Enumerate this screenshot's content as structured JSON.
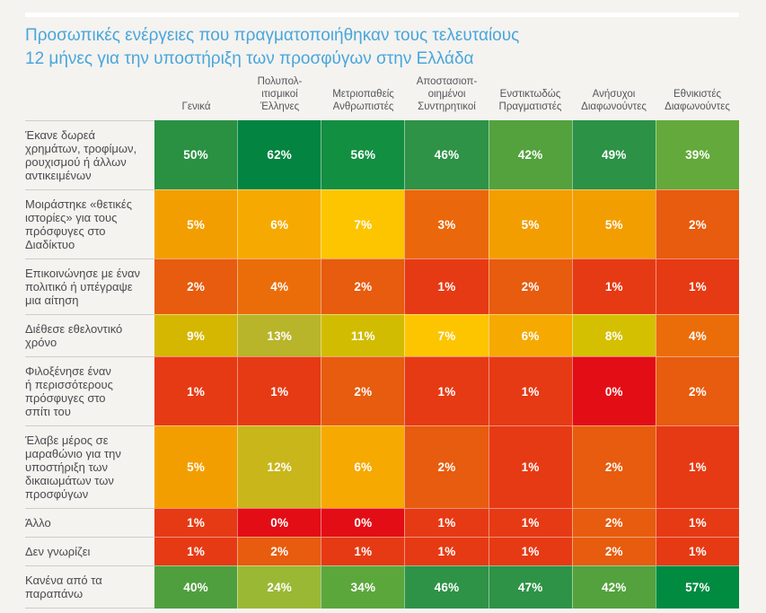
{
  "title": {
    "text": "Προσωπικές ενέργειες που πραγματοποιήθηκαν τους τελευταίους\n12 μήνες για την υποστήριξη των προσφύγων στην Ελλάδα"
  },
  "colors": {
    "title_text": "#4AA6DB",
    "header_text": "#55565A",
    "row_label_text": "#4B4B4E",
    "cell_text": "#FFFFFF",
    "background": "#F4F3F0",
    "divider": "#CFCDC8",
    "top_strip": "#FFFFFF"
  },
  "table": {
    "columns": [
      {
        "label": "Γενικά"
      },
      {
        "label": "Πολυπολ-\nιτισμικοί\nΈλληνες"
      },
      {
        "label": "Μετριοπαθείς\nΑνθρωπιστές"
      },
      {
        "label": "Αποστασιοπ-\nοιημένοι\nΣυντηρητικοί"
      },
      {
        "label": "Ενστικτωδώς\nΠραγματιστές"
      },
      {
        "label": "Ανήσυχοι\nΔιαφωνούντες"
      },
      {
        "label": "Εθνικιστές\nΔιαφωνούντες"
      }
    ],
    "rows": [
      {
        "label": "Έκανε δωρεά\nχρημάτων, τροφίμων,\nρουχισμού ή άλλων\nαντικειμένων",
        "cells": [
          {
            "value": "50%",
            "color": "#2A9142"
          },
          {
            "value": "62%",
            "color": "#038440"
          },
          {
            "value": "56%",
            "color": "#128F41"
          },
          {
            "value": "46%",
            "color": "#2E9346"
          },
          {
            "value": "42%",
            "color": "#53A23D"
          },
          {
            "value": "49%",
            "color": "#2C9245"
          },
          {
            "value": "39%",
            "color": "#63A93B"
          }
        ]
      },
      {
        "label": "Μοιράστηκε «θετικές\nιστορίες» για τους\nπρόσφυγες στο\nΔιαδίκτυο",
        "cells": [
          {
            "value": "5%",
            "color": "#F39E00"
          },
          {
            "value": "6%",
            "color": "#F6A900"
          },
          {
            "value": "7%",
            "color": "#FDC500"
          },
          {
            "value": "3%",
            "color": "#EA680B"
          },
          {
            "value": "5%",
            "color": "#F39E00"
          },
          {
            "value": "5%",
            "color": "#F39E00"
          },
          {
            "value": "2%",
            "color": "#E75C0E"
          }
        ]
      },
      {
        "label": "Επικοινώνησε με έναν\nπολιτικό ή υπέγραψε\nμια αίτηση",
        "cells": [
          {
            "value": "2%",
            "color": "#E75C0E"
          },
          {
            "value": "4%",
            "color": "#EB6D09"
          },
          {
            "value": "2%",
            "color": "#E75C0E"
          },
          {
            "value": "1%",
            "color": "#E63A14"
          },
          {
            "value": "2%",
            "color": "#E75C0E"
          },
          {
            "value": "1%",
            "color": "#E63A14"
          },
          {
            "value": "1%",
            "color": "#E63A14"
          }
        ]
      },
      {
        "label": "Διέθεσε εθελοντικό\nχρόνο",
        "cells": [
          {
            "value": "9%",
            "color": "#D5B600"
          },
          {
            "value": "13%",
            "color": "#B8B52A"
          },
          {
            "value": "11%",
            "color": "#D1BC02"
          },
          {
            "value": "7%",
            "color": "#FDC500"
          },
          {
            "value": "6%",
            "color": "#F6A900"
          },
          {
            "value": "8%",
            "color": "#D4C000"
          },
          {
            "value": "4%",
            "color": "#EB6D09"
          }
        ]
      },
      {
        "label": "Φιλοξένησε έναν\nή περισσότερους\nπρόσφυγες στο\nσπίτι του",
        "cells": [
          {
            "value": "1%",
            "color": "#E63A14"
          },
          {
            "value": "1%",
            "color": "#E63A14"
          },
          {
            "value": "2%",
            "color": "#E75C0E"
          },
          {
            "value": "1%",
            "color": "#E63A14"
          },
          {
            "value": "1%",
            "color": "#E63A14"
          },
          {
            "value": "0%",
            "color": "#E30D16"
          },
          {
            "value": "2%",
            "color": "#E75C0E"
          }
        ]
      },
      {
        "label": "Έλαβε μέρος σε\nμαραθώνιο για την\nυποστήριξη των\nδικαιωμάτων των\nπροσφύγων",
        "cells": [
          {
            "value": "5%",
            "color": "#F39E00"
          },
          {
            "value": "12%",
            "color": "#C8B61B"
          },
          {
            "value": "6%",
            "color": "#F6A900"
          },
          {
            "value": "2%",
            "color": "#E75C0E"
          },
          {
            "value": "1%",
            "color": "#E63A14"
          },
          {
            "value": "2%",
            "color": "#E75C0E"
          },
          {
            "value": "1%",
            "color": "#E63A14"
          }
        ]
      },
      {
        "label": "Άλλο",
        "cells": [
          {
            "value": "1%",
            "color": "#E63A14"
          },
          {
            "value": "0%",
            "color": "#E30D16"
          },
          {
            "value": "0%",
            "color": "#E30D16"
          },
          {
            "value": "1%",
            "color": "#E63A14"
          },
          {
            "value": "1%",
            "color": "#E63A14"
          },
          {
            "value": "2%",
            "color": "#E75C0E"
          },
          {
            "value": "1%",
            "color": "#E63A14"
          }
        ]
      },
      {
        "label": "Δεν γνωρίζει",
        "cells": [
          {
            "value": "1%",
            "color": "#E63A14"
          },
          {
            "value": "2%",
            "color": "#E75C0E"
          },
          {
            "value": "1%",
            "color": "#E63A14"
          },
          {
            "value": "1%",
            "color": "#E63A14"
          },
          {
            "value": "1%",
            "color": "#E63A14"
          },
          {
            "value": "2%",
            "color": "#E75C0E"
          },
          {
            "value": "1%",
            "color": "#E63A14"
          }
        ]
      },
      {
        "label": "Κανένα από τα\nπαραπάνω",
        "cells": [
          {
            "value": "40%",
            "color": "#4F9F3E"
          },
          {
            "value": "24%",
            "color": "#9BB834"
          },
          {
            "value": "34%",
            "color": "#5CA73C"
          },
          {
            "value": "46%",
            "color": "#2E9346"
          },
          {
            "value": "47%",
            "color": "#2E9346"
          },
          {
            "value": "42%",
            "color": "#53A23D"
          },
          {
            "value": "57%",
            "color": "#008B41"
          }
        ]
      }
    ]
  },
  "chart_data": {
    "type": "heatmap",
    "title": "Προσωπικές ενέργειες που πραγματοποιήθηκαν τους τελευταίους 12 μήνες για την υποστήριξη των προσφύγων στην Ελλάδα",
    "unit": "percent",
    "columns": [
      "Γενικά",
      "Πολυπολιτισμικοί Έλληνες",
      "Μετριοπαθείς Ανθρωπιστές",
      "Αποστασιοποιημένοι Συντηρητικοί",
      "Ενστικτωδώς Πραγματιστές",
      "Ανήσυχοι Διαφωνούντες",
      "Εθνικιστές Διαφωνούντες"
    ],
    "rows": [
      "Έκανε δωρεά χρημάτων, τροφίμων, ρουχισμού ή άλλων αντικειμένων",
      "Μοιράστηκε «θετικές ιστορίες» για τους πρόσφυγες στο Διαδίκτυο",
      "Επικοινώνησε με έναν πολιτικό ή υπέγραψε μια αίτηση",
      "Διέθεσε εθελοντικό χρόνο",
      "Φιλοξένησε έναν ή περισσότερους πρόσφυγες στο σπίτι του",
      "Έλαβε μέρος σε μαραθώνιο για την υποστήριξη των δικαιωμάτων των προσφύγων",
      "Άλλο",
      "Δεν γνωρίζει",
      "Κανένα από τα παραπάνω"
    ],
    "values": [
      [
        50,
        62,
        56,
        46,
        42,
        49,
        39
      ],
      [
        5,
        6,
        7,
        3,
        5,
        5,
        2
      ],
      [
        2,
        4,
        2,
        1,
        2,
        1,
        1
      ],
      [
        9,
        13,
        11,
        7,
        6,
        8,
        4
      ],
      [
        1,
        1,
        2,
        1,
        1,
        0,
        2
      ],
      [
        5,
        12,
        6,
        2,
        1,
        2,
        1
      ],
      [
        1,
        0,
        0,
        1,
        1,
        2,
        1
      ],
      [
        1,
        2,
        1,
        1,
        1,
        2,
        1
      ],
      [
        40,
        24,
        34,
        46,
        47,
        42,
        57
      ]
    ],
    "color_scale": {
      "low_value": 0,
      "low_color": "#E30D16",
      "mid_value": 7,
      "mid_color": "#FDC500",
      "high_value": 62,
      "high_color": "#038440",
      "description": "0% κόκκινο → πορτοκαλί → κίτρινο (~7%) → πράσινο (υψηλά ποσοστά)"
    },
    "legend": "none",
    "grid": "thin white separators between cells"
  }
}
